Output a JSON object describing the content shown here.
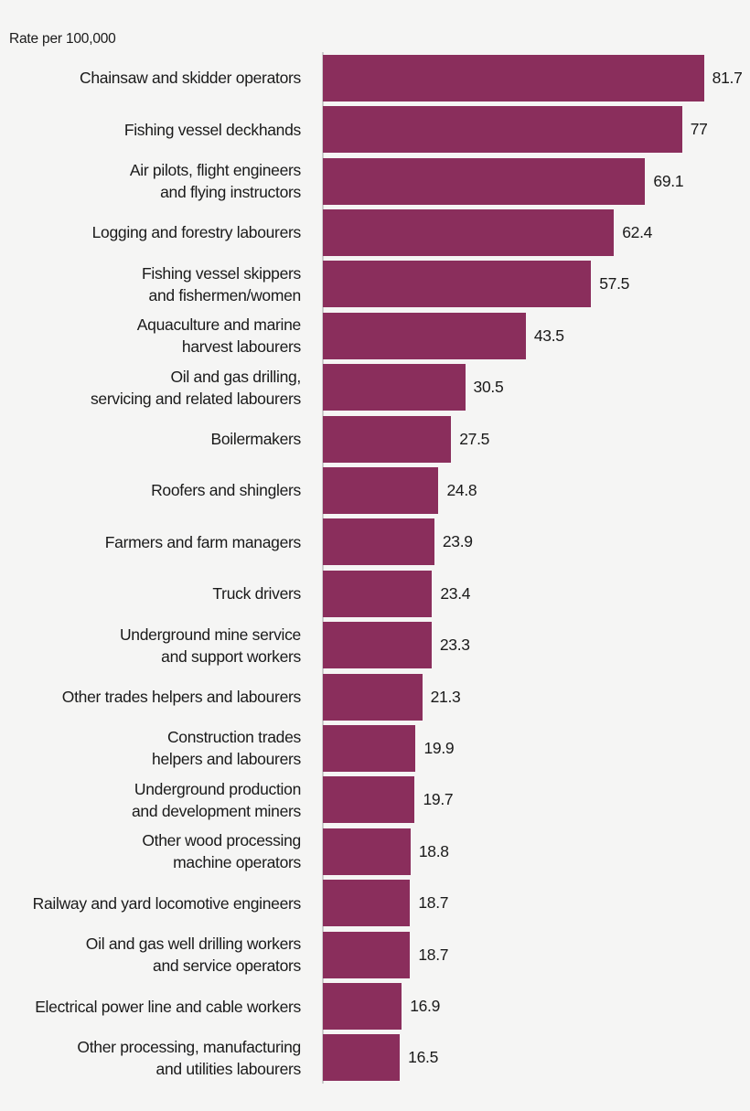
{
  "page": {
    "background_color": "#f5f5f4"
  },
  "chart_data": {
    "type": "bar",
    "orientation": "horizontal",
    "title": "Rate per 100,000",
    "xlabel": "",
    "ylabel": "",
    "xlim": [
      0,
      90
    ],
    "grid": false,
    "legend": false,
    "bar_color": "#8a2e5c",
    "axis_line_color": "#cccccc",
    "categories": [
      "Chainsaw and skidder operators",
      "Fishing vessel deckhands",
      "Air pilots, flight engineers\nand flying instructors",
      "Logging and forestry labourers",
      "Fishing vessel skippers\nand fishermen/women",
      "Aquaculture and marine\nharvest labourers",
      "Oil and gas drilling,\nservicing and related labourers",
      "Boilermakers",
      "Roofers and shinglers",
      "Farmers and farm managers",
      "Truck drivers",
      "Underground mine service\nand support workers",
      "Other trades helpers and labourers",
      "Construction trades\nhelpers and labourers",
      "Underground production\nand development miners",
      "Other wood processing\nmachine operators",
      "Railway and yard locomotive engineers",
      "Oil and gas well drilling workers\nand service operators",
      "Electrical power line and cable workers",
      "Other processing, manufacturing\nand utilities labourers"
    ],
    "values": [
      81.7,
      77,
      69.1,
      62.4,
      57.5,
      43.5,
      30.5,
      27.5,
      24.8,
      23.9,
      23.4,
      23.3,
      21.3,
      19.9,
      19.7,
      18.8,
      18.7,
      18.7,
      16.9,
      16.5
    ],
    "value_labels": [
      "81.7",
      "77",
      "69.1",
      "62.4",
      "57.5",
      "43.5",
      "30.5",
      "27.5",
      "24.8",
      "23.9",
      "23.4",
      "23.3",
      "21.3",
      "19.9",
      "19.7",
      "18.8",
      "18.7",
      "18.7",
      "16.9",
      "16.5"
    ]
  }
}
